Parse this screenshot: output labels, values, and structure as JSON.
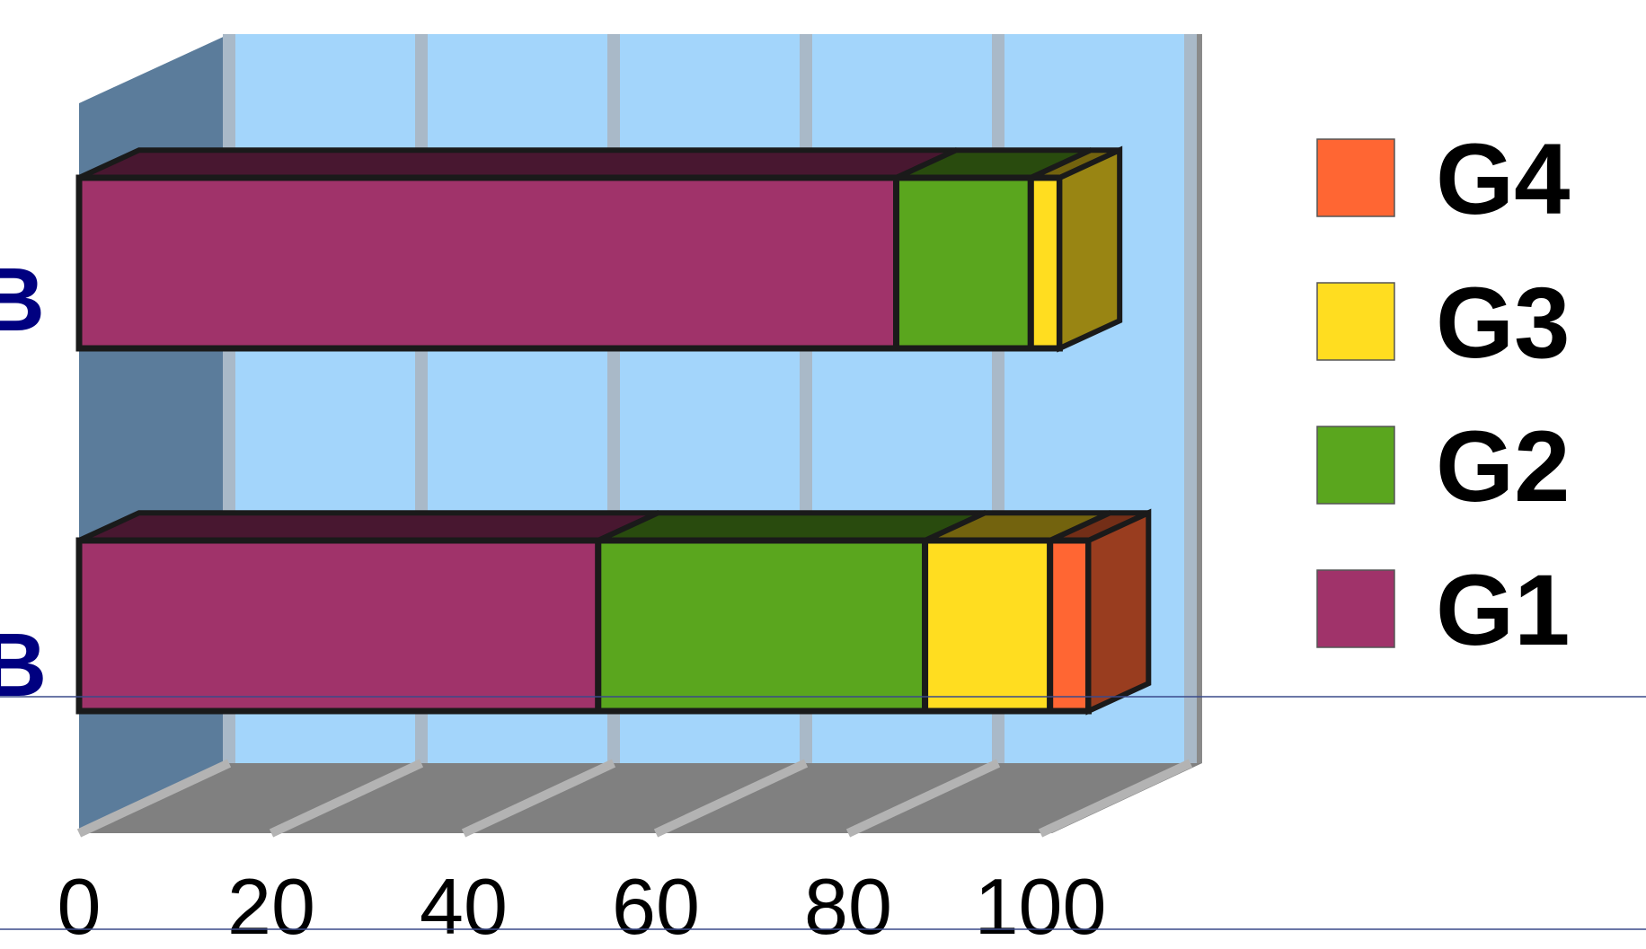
{
  "chart_data": {
    "type": "bar",
    "orientation": "horizontal",
    "stacked": true,
    "style": "3d",
    "categories": [
      "IB",
      "B"
    ],
    "category_labels_display": [
      "IB",
      "B"
    ],
    "series": [
      {
        "name": "G1",
        "values": [
          85,
          54
        ],
        "color": "#a0336a"
      },
      {
        "name": "G2",
        "values": [
          14,
          34
        ],
        "color": "#5aa61e"
      },
      {
        "name": "G3",
        "values": [
          3,
          13
        ],
        "color": "#ffdd20"
      },
      {
        "name": "G4",
        "values": [
          0,
          4
        ],
        "color": "#ff6633"
      }
    ],
    "x_ticks": [
      "0",
      "20",
      "40",
      "60",
      "80",
      "100"
    ],
    "xlim": [
      0,
      100
    ],
    "grid": true,
    "legend": {
      "position": "right",
      "order": [
        "G4",
        "G3",
        "G2",
        "G1"
      ]
    },
    "colors": {
      "plot_background": "#a3d5fb",
      "side_wall": "#5b7c9b",
      "floor": "#808080"
    }
  }
}
